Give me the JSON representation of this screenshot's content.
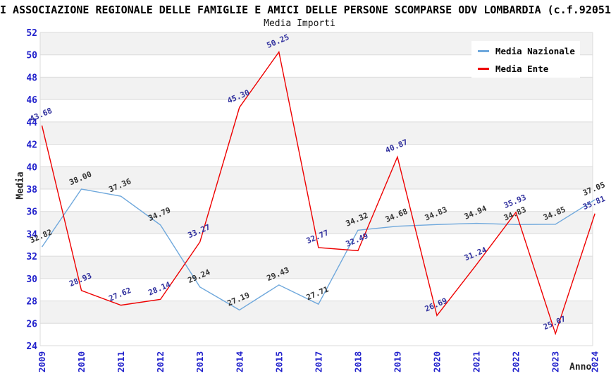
{
  "header": {
    "title": "I ASSOCIAZIONE REGIONALE DELLE FAMIGLIE E AMICI DELLE PERSONE SCOMPARSE ODV LOMBARDIA (c.f.92051",
    "subtitle": "Media Importi"
  },
  "colors": {
    "background": "#FFFFFF",
    "band": "#F2F2F2",
    "grid": "#DBDBDB",
    "tick_label": "#2222CC",
    "national_line": "#6FA8DC",
    "entity_line": "#EE0000",
    "national_point_label": "#333333",
    "entity_point_label": "#31319E"
  },
  "chart_data": {
    "type": "line",
    "title": "Media Importi",
    "xlabel": "Anno",
    "ylabel": "Media",
    "ylim": [
      24,
      52
    ],
    "ytick_step": 2,
    "grid": "horizontal-bands",
    "legend_position": "top-right",
    "categories": [
      "2009",
      "2010",
      "2011",
      "2012",
      "2013",
      "2014",
      "2015",
      "2017",
      "2018",
      "2019",
      "2020",
      "2021",
      "2022",
      "2023",
      "2024"
    ],
    "series": [
      {
        "name": "Media Nazionale",
        "id": "media-nazionale",
        "color": "#6FA8DC",
        "label_color": "#333333",
        "values": [
          32.82,
          38.0,
          37.36,
          34.79,
          29.24,
          27.19,
          29.43,
          27.71,
          34.32,
          34.68,
          34.83,
          34.94,
          34.83,
          34.85,
          37.05
        ]
      },
      {
        "name": "Media Ente",
        "id": "media-ente",
        "color": "#EE0000",
        "label_color": "#31319E",
        "values": [
          43.68,
          28.93,
          27.62,
          28.14,
          33.27,
          45.3,
          50.25,
          32.77,
          32.49,
          40.87,
          26.69,
          31.24,
          35.93,
          25.07,
          35.81
        ]
      }
    ]
  }
}
